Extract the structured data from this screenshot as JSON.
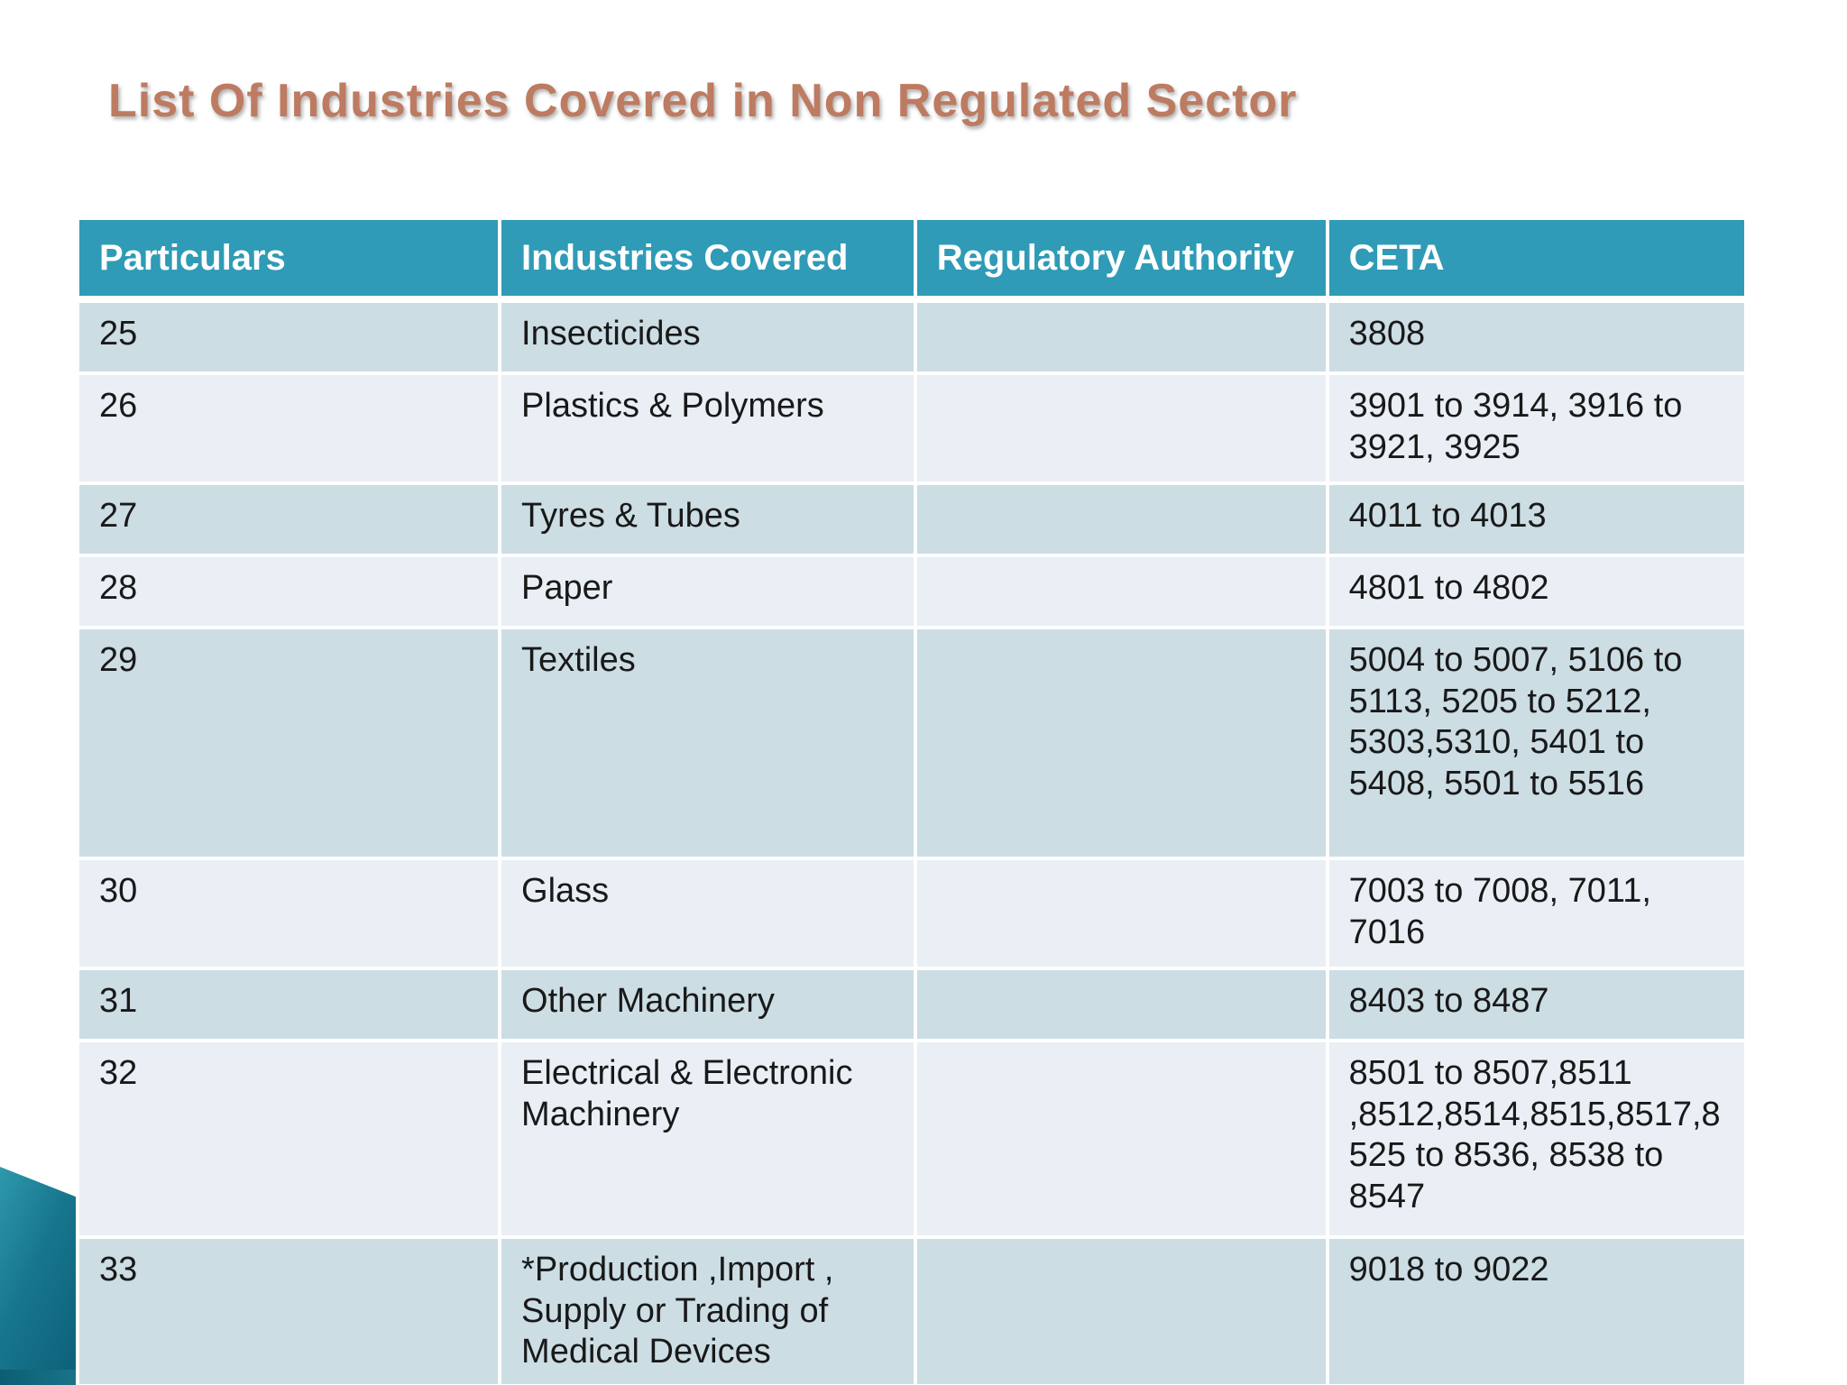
{
  "slide_title": "List Of Industries Covered in Non Regulated Sector",
  "table": {
    "columns": [
      "Particulars",
      "Industries Covered",
      "Regulatory Authority",
      "CETA"
    ],
    "rows": [
      [
        "25",
        "Insecticides",
        "",
        "3808"
      ],
      [
        "26",
        "Plastics & Polymers",
        "",
        "3901 to 3914, 3916 to 3921, 3925"
      ],
      [
        "27",
        "Tyres & Tubes",
        "",
        "4011 to 4013"
      ],
      [
        "28",
        "Paper",
        "",
        "4801 to 4802"
      ],
      [
        "29",
        "Textiles",
        "",
        "5004 to 5007, 5106 to 5113, 5205 to 5212, 5303,5310, 5401 to 5408, 5501 to 5516"
      ],
      [
        "30",
        "Glass",
        "",
        "7003 to 7008, 7011, 7016"
      ],
      [
        "31",
        "Other Machinery",
        "",
        "8403 to 8487"
      ],
      [
        "32",
        "Electrical  & Electronic Machinery",
        "",
        "8501 to 8507,8511 ,8512,8514,8515,8517,8525 to 8536, 8538 to 8547"
      ],
      [
        "33",
        "*Production ,Import , Supply or Trading of Medical Devices",
        "",
        "9018 to 9022"
      ]
    ]
  },
  "colors": {
    "header_bg": "#2F9BB6",
    "row_odd": "#CCDDE4",
    "row_even": "#E9EFF4",
    "title_text": "#BD7B61",
    "band_teal_dark": "#0C5D73",
    "band_teal_light": "#49B0C4",
    "band_black": "#000000",
    "band_light_blue": "#CFE0EA"
  }
}
